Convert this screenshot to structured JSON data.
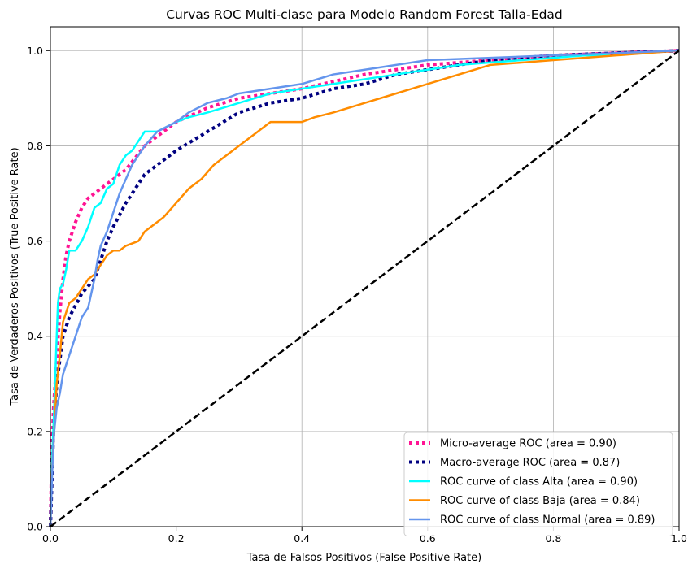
{
  "chart_data": {
    "type": "line",
    "title": "Curvas ROC Multi-clase para Modelo Random Forest Talla-Edad",
    "xlabel": "Tasa de Falsos Positivos (False Positive Rate)",
    "ylabel": "Tasa de Verdaderos Positivos (True Positive Rate)",
    "xlim": [
      0,
      1
    ],
    "ylim": [
      0,
      1.05
    ],
    "grid": true,
    "legend_position": "lower-right",
    "x_ticks": [
      0.0,
      0.2,
      0.4,
      0.6,
      0.8,
      1.0
    ],
    "y_ticks": [
      0.0,
      0.2,
      0.4,
      0.6,
      0.8,
      1.0
    ],
    "x_tick_labels": [
      "0.0",
      "0.2",
      "0.4",
      "0.6",
      "0.8",
      "1.0"
    ],
    "y_tick_labels": [
      "0.0",
      "0.2",
      "0.4",
      "0.6",
      "0.8",
      "1.0"
    ],
    "series": [
      {
        "name": "Micro-average ROC (area = 0.90)",
        "color": "#ff1493",
        "style": "dotted",
        "width": 4,
        "x": [
          0.0,
          0.002,
          0.005,
          0.01,
          0.015,
          0.02,
          0.025,
          0.03,
          0.04,
          0.05,
          0.06,
          0.08,
          0.1,
          0.12,
          0.15,
          0.2,
          0.25,
          0.3,
          0.35,
          0.4,
          0.5,
          0.6,
          0.7,
          0.8,
          0.9,
          1.0
        ],
        "y": [
          0.0,
          0.15,
          0.25,
          0.35,
          0.45,
          0.52,
          0.57,
          0.6,
          0.64,
          0.67,
          0.69,
          0.71,
          0.73,
          0.75,
          0.8,
          0.85,
          0.88,
          0.9,
          0.91,
          0.92,
          0.95,
          0.97,
          0.98,
          0.99,
          0.995,
          1.0
        ]
      },
      {
        "name": "Macro-average ROC (area = 0.87)",
        "color": "#000080",
        "style": "dotted",
        "width": 4,
        "x": [
          0.0,
          0.005,
          0.01,
          0.02,
          0.03,
          0.05,
          0.07,
          0.09,
          0.1,
          0.12,
          0.15,
          0.2,
          0.25,
          0.3,
          0.35,
          0.4,
          0.45,
          0.5,
          0.55,
          0.6,
          0.7,
          0.8,
          0.9,
          1.0
        ],
        "y": [
          0.0,
          0.2,
          0.3,
          0.4,
          0.44,
          0.49,
          0.52,
          0.6,
          0.63,
          0.68,
          0.74,
          0.79,
          0.83,
          0.87,
          0.89,
          0.9,
          0.92,
          0.93,
          0.95,
          0.96,
          0.98,
          0.99,
          0.995,
          1.0
        ]
      },
      {
        "name": "ROC curve of class Alta (area = 0.90)",
        "color": "#00ffff",
        "style": "solid",
        "width": 2.5,
        "x": [
          0.0,
          0.003,
          0.006,
          0.01,
          0.012,
          0.015,
          0.02,
          0.025,
          0.03,
          0.04,
          0.05,
          0.06,
          0.07,
          0.08,
          0.09,
          0.1,
          0.11,
          0.12,
          0.13,
          0.14,
          0.15,
          0.17,
          0.2,
          0.22,
          0.25,
          0.3,
          0.35,
          0.4,
          0.45,
          0.5,
          0.55,
          0.6,
          0.65,
          0.7,
          0.75,
          0.8,
          0.85,
          0.89
        ],
        "y": [
          0.0,
          0.15,
          0.25,
          0.4,
          0.47,
          0.5,
          0.51,
          0.54,
          0.58,
          0.58,
          0.6,
          0.63,
          0.67,
          0.68,
          0.71,
          0.72,
          0.76,
          0.78,
          0.79,
          0.81,
          0.83,
          0.83,
          0.85,
          0.86,
          0.87,
          0.89,
          0.91,
          0.92,
          0.93,
          0.94,
          0.95,
          0.96,
          0.97,
          0.975,
          0.98,
          0.985,
          0.99,
          0.99
        ]
      },
      {
        "name": "ROC curve of class Baja (area = 0.84)",
        "color": "#ff8c00",
        "style": "solid",
        "width": 2.5,
        "x": [
          0.0,
          0.002,
          0.004,
          0.006,
          0.01,
          0.015,
          0.02,
          0.03,
          0.04,
          0.05,
          0.06,
          0.07,
          0.08,
          0.09,
          0.1,
          0.11,
          0.12,
          0.14,
          0.15,
          0.17,
          0.18,
          0.2,
          0.22,
          0.24,
          0.26,
          0.28,
          0.3,
          0.32,
          0.35,
          0.38,
          0.4,
          0.42,
          0.45,
          0.5,
          0.55,
          0.6,
          0.65,
          0.7,
          0.8,
          0.9,
          1.0
        ],
        "y": [
          0.0,
          0.1,
          0.15,
          0.2,
          0.3,
          0.36,
          0.43,
          0.47,
          0.48,
          0.5,
          0.52,
          0.53,
          0.55,
          0.57,
          0.58,
          0.58,
          0.59,
          0.6,
          0.62,
          0.64,
          0.65,
          0.68,
          0.71,
          0.73,
          0.76,
          0.78,
          0.8,
          0.82,
          0.85,
          0.85,
          0.85,
          0.86,
          0.87,
          0.89,
          0.91,
          0.93,
          0.95,
          0.97,
          0.98,
          0.99,
          1.0
        ]
      },
      {
        "name": "ROC curve of class Normal (area = 0.89)",
        "color": "#6495ed",
        "style": "solid",
        "width": 2.5,
        "x": [
          0.0,
          0.003,
          0.006,
          0.01,
          0.015,
          0.02,
          0.03,
          0.04,
          0.05,
          0.06,
          0.07,
          0.075,
          0.08,
          0.09,
          0.1,
          0.11,
          0.12,
          0.13,
          0.15,
          0.17,
          0.2,
          0.22,
          0.25,
          0.28,
          0.3,
          0.35,
          0.4,
          0.45,
          0.5,
          0.6,
          0.7,
          0.8,
          0.9,
          1.0
        ],
        "y": [
          0.0,
          0.12,
          0.2,
          0.25,
          0.28,
          0.32,
          0.36,
          0.4,
          0.44,
          0.46,
          0.52,
          0.56,
          0.59,
          0.62,
          0.66,
          0.7,
          0.73,
          0.76,
          0.8,
          0.83,
          0.85,
          0.87,
          0.89,
          0.9,
          0.91,
          0.92,
          0.93,
          0.95,
          0.96,
          0.98,
          0.985,
          0.99,
          0.995,
          1.0
        ]
      },
      {
        "name": "",
        "color": "#000000",
        "style": "dashed",
        "width": 2.5,
        "x": [
          0.0,
          1.0
        ],
        "y": [
          0.0,
          1.0
        ]
      }
    ]
  }
}
